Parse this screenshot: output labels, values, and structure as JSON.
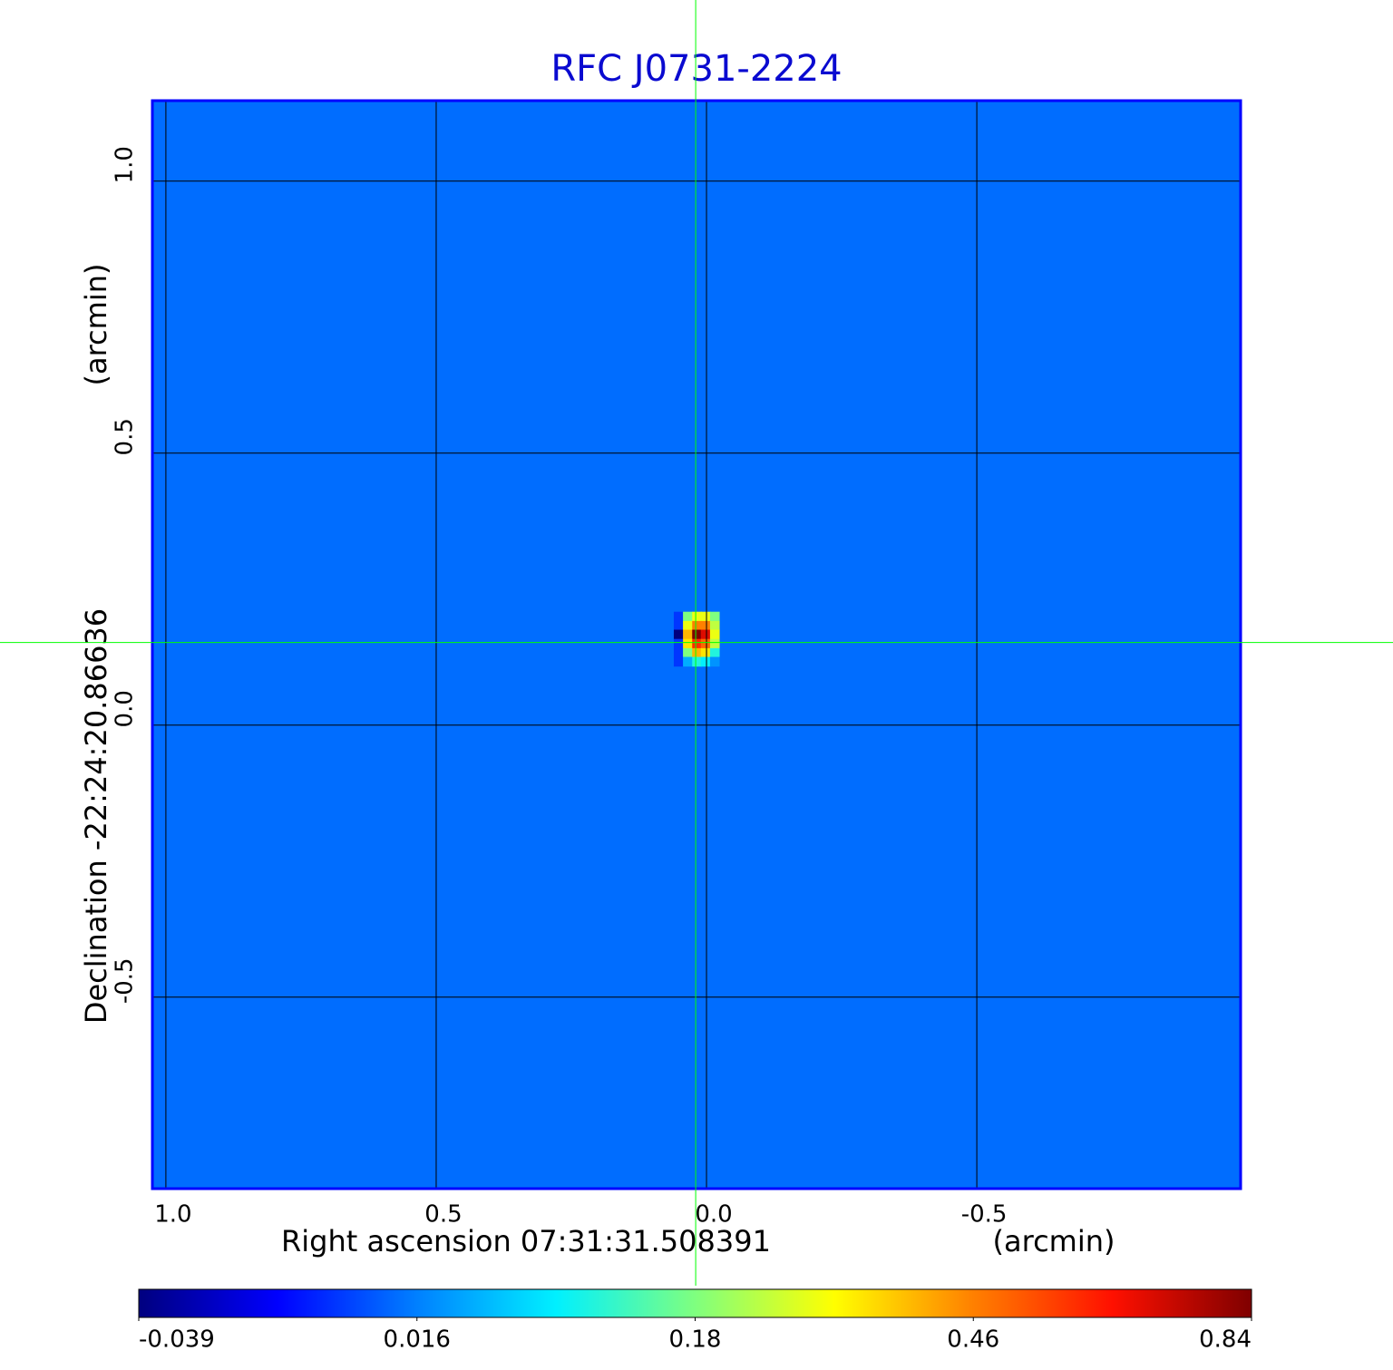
{
  "chart_data": {
    "type": "image",
    "title": "RFC J0731-2224",
    "x_label": "Right ascension  07:31:31.508391",
    "x_unit": "(arcmin)",
    "y_label": "Declination  -22:24:20.86636",
    "y_unit": "(arcmin)",
    "xlim": [
      1.025,
      -0.988
    ],
    "ylim": [
      -0.852,
      1.148
    ],
    "xticks": [
      {
        "value": 1,
        "label": "1.0"
      },
      0.5,
      {
        "value": 0,
        "label": "0.0"
      },
      -0.5
    ],
    "yticks": [
      -0.5,
      {
        "value": 0,
        "label": "0.0"
      },
      0.5,
      {
        "value": 1,
        "label": "1.0"
      }
    ],
    "grid": true,
    "frame_color": "#0000ff",
    "background_value": 0.012,
    "image": {
      "x": [
        0.052,
        0.035,
        0.018,
        0.002,
        -0.015
      ],
      "y": [
        0.2,
        0.183,
        0.167,
        0.15,
        0.133,
        0.117
      ],
      "values": [
        [
          0.0,
          0.18,
          0.3,
          0.3,
          0.18
        ],
        [
          0.0,
          0.3,
          0.46,
          0.46,
          0.25
        ],
        [
          -0.039,
          0.4,
          0.84,
          0.7,
          0.3
        ],
        [
          0.0,
          0.35,
          0.6,
          0.5,
          0.25
        ],
        [
          0.0,
          0.18,
          0.4,
          0.35,
          0.12
        ],
        [
          0.0,
          0.05,
          0.12,
          0.1,
          0.03
        ]
      ]
    },
    "crosshair": {
      "x": 0.02,
      "y": 0.152,
      "color": "#00ff00"
    },
    "colormap": [
      "#00007f",
      "#0000ff",
      "#0080ff",
      "#00f0ff",
      "#7fff7f",
      "#ffff00",
      "#ff8000",
      "#ff1000",
      "#7f0000"
    ],
    "colorbar_ticks": [
      -0.039,
      0.016,
      0.18,
      0.46,
      0.84
    ]
  }
}
